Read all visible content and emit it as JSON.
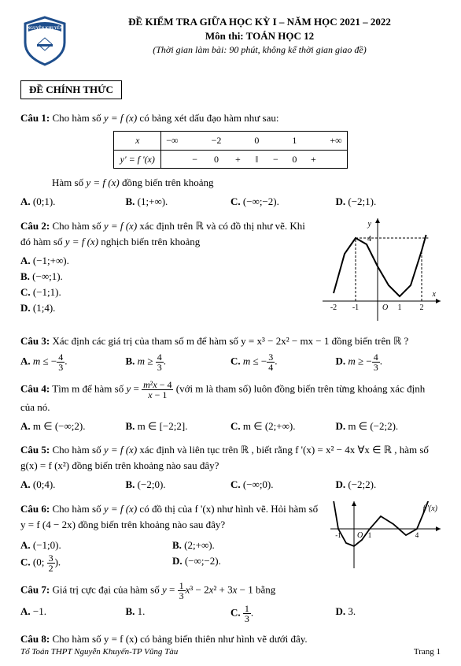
{
  "header": {
    "title": "ĐỀ KIỂM TRA GIỮA HỌC KỲ I – NĂM HỌC 2021 – 2022",
    "subject": "Môn thi:   TOÁN HỌC 12",
    "time": "(Thời gian làm bài: 90 phút, không kể thời gian giao đề)",
    "official": "ĐỀ CHÍNH THỨC",
    "logo_top": "NGUYỄN KHUYẾN"
  },
  "sign_table": {
    "row1_label": "x",
    "row2_label": "y' = f '(x)",
    "cols": [
      "−∞",
      "",
      "−2",
      "",
      "0",
      "",
      "1",
      "",
      "+∞"
    ],
    "signs": [
      "",
      "−",
      "0",
      "+",
      "‖",
      "−",
      "0",
      "+",
      ""
    ]
  },
  "q1": {
    "label": "Câu 1:",
    "text_a": " Cho hàm số ",
    "fx": "y = f (x)",
    "text_b": " có bảng xét dấu đạo hàm như sau:",
    "sub": "Hàm số ",
    "sub2": " đồng biến trên khoảng",
    "opts": {
      "A": "(0;1).",
      "B": "(1;+∞).",
      "C": "(−∞;−2).",
      "D": "(−2;1)."
    }
  },
  "q2": {
    "label": "Câu 2:",
    "text_a": " Cho hàm số ",
    "fx": "y = f (x)",
    "text_b": " xác định trên ℝ và có đồ thị như vẽ. Khi đó hàm số ",
    "text_c": " nghịch biến trên khoảng",
    "opts": {
      "A": "(−1;+∞).",
      "B": "(−∞;1).",
      "C": "(−1;1).",
      "D": "(1;4)."
    },
    "chart": {
      "type": "curve",
      "xlim": [
        -2.2,
        2.4
      ],
      "ylim": [
        -1,
        4.5
      ],
      "xticks": [
        -2,
        -1,
        1,
        2
      ],
      "yticks": [
        4
      ],
      "background_color": "#ffffff",
      "axis_color": "#000000",
      "curve_color": "#000000",
      "dash_color": "#000000",
      "points": [
        [
          -2,
          0.5
        ],
        [
          -1.5,
          3
        ],
        [
          -1,
          4
        ],
        [
          -0.5,
          3.6
        ],
        [
          0,
          2.2
        ],
        [
          0.5,
          1
        ],
        [
          1,
          0.3
        ],
        [
          1.5,
          1
        ],
        [
          2,
          3.2
        ],
        [
          2.2,
          4.2
        ]
      ]
    }
  },
  "q3": {
    "label": "Câu 3:",
    "text": " Xác định các giá trị của tham số m để hàm số  y = x³ − 2x² − mx − 1 đồng biến trên ℝ ?",
    "opts": {
      "A": "m ≤ − 4/3.",
      "B": "m ≥ 4/3.",
      "C": "m ≤ − 3/4.",
      "D": "m ≥ − 4/3."
    }
  },
  "q4": {
    "label": "Câu 4:",
    "text_a": " Tìm m để hàm số ",
    "fx": "y = (m²x − 4)/(x − 1)",
    "text_b": " (với m là tham số) luôn đồng biến trên từng khoảng xác định của nó.",
    "opts": {
      "A": "m ∈ (−∞;2).",
      "B": "m ∈ [−2;2].",
      "C": "m ∈ (2;+∞).",
      "D": "m ∈ (−2;2)."
    }
  },
  "q5": {
    "label": "Câu 5:",
    "text_a": " Cho hàm số ",
    "fx": "y = f (x)",
    "text_b": " xác định và liên tục trên ℝ , biết rằng  f '(x) = x² − 4x  ∀x ∈ ℝ , hàm số g(x) = f (x²) đồng biến trên khoảng nào sau đây?",
    "opts": {
      "A": "(0;4).",
      "B": "(−2;0).",
      "C": "(−∞;0).",
      "D": "(−2;2)."
    }
  },
  "q6": {
    "label": "Câu 6:",
    "text_a": "  Cho hàm số ",
    "fx": "y = f (x)",
    "text_b": " có đồ thị của  f '(x) như hình vẽ. Hỏi hàm số  y = f (4 − 2x) đồng biến trên khoảng nào sau đây?",
    "opts": {
      "A": "(−1;0).",
      "B": "(2;+∞).",
      "C": "(0; 3/2).",
      "D": "(−∞;−2)."
    },
    "chart": {
      "type": "curve",
      "xlim": [
        -1.5,
        5
      ],
      "ylim": [
        -1.5,
        2
      ],
      "xticks": [
        -1,
        1,
        4
      ],
      "label_text": "f '(x)",
      "background_color": "#ffffff",
      "axis_color": "#000000",
      "curve_color": "#000000",
      "points": [
        [
          -1.3,
          1.8
        ],
        [
          -1,
          0
        ],
        [
          -0.5,
          -0.9
        ],
        [
          0,
          -1.1
        ],
        [
          0.5,
          -0.7
        ],
        [
          1,
          0
        ],
        [
          1.7,
          0.8
        ],
        [
          2.5,
          0.3
        ],
        [
          3.3,
          -0.4
        ],
        [
          4,
          0
        ],
        [
          4.5,
          1.2
        ],
        [
          4.8,
          2
        ]
      ]
    }
  },
  "q7": {
    "label": "Câu 7:",
    "text": " Giá trị cực đại của hàm số  y = (1/3)x³ − 2x² + 3x − 1 bằng",
    "opts": {
      "A": "−1.",
      "B": "1.",
      "C": "1/3.",
      "D": "3."
    }
  },
  "q8": {
    "label": "Câu 8:",
    "text": " Cho hàm số  y = f (x) có bảng biến thiên như hình vẽ dưới đây."
  },
  "footer": {
    "left": "Tổ Toán THPT Nguyễn Khuyến-TP Vũng Tàu",
    "right": "Trang 1"
  }
}
